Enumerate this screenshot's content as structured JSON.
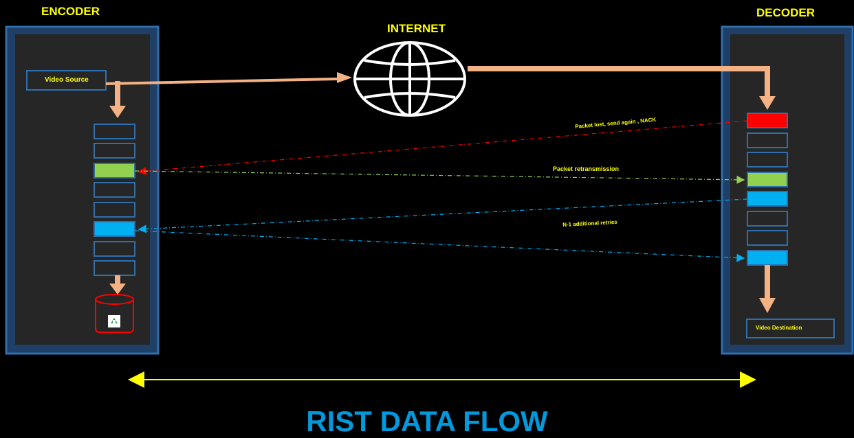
{
  "encoder": {
    "title": "ENCODER",
    "video_source": "Video Source"
  },
  "decoder": {
    "title": "DECODER",
    "video_destination": "Video Destination"
  },
  "internet": {
    "title": "INTERNET"
  },
  "flows": {
    "nack": "Packet lost, send again , NACK",
    "retransmission": "Packet retransmission",
    "retries": "N-1 additional retries"
  },
  "footer": {
    "title": "RIST DATA FLOW"
  },
  "colors": {
    "panel_border": "#2e6fb0",
    "panel_fill": "#262626",
    "arrow": "#f4b183",
    "lost": "#ff0000",
    "retransmit": "#92d050",
    "retry": "#00b0f0",
    "accent_text": "#ffff00",
    "footer": "#0099dd"
  }
}
